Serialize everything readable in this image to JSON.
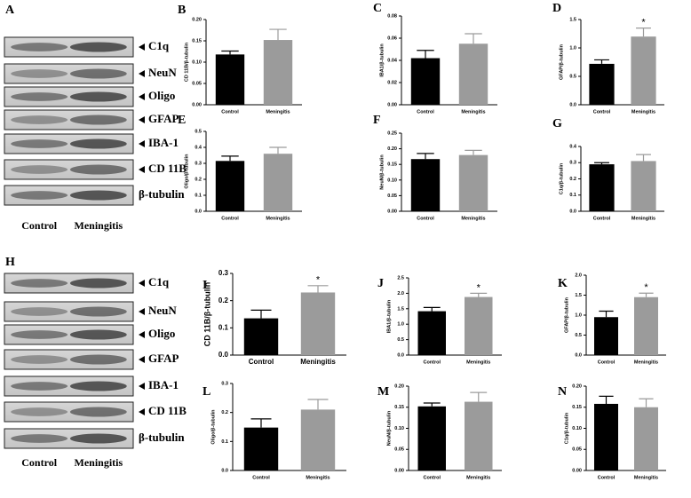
{
  "blots": [
    {
      "panel_label": "A",
      "bands": [
        "C1q",
        "NeuN",
        "Oligo",
        "GFAP",
        "IBA-1",
        "CD 11B",
        "β-tubulin"
      ],
      "lanes": [
        "Control",
        "Meningitis"
      ]
    },
    {
      "panel_label": "H",
      "bands": [
        "C1q",
        "NeuN",
        "Oligo",
        "GFAP",
        "IBA-1",
        "CD 11B",
        "β-tubulin"
      ],
      "lanes": [
        "Control",
        "Meningitis"
      ]
    }
  ],
  "chart_data": [
    {
      "type": "bar",
      "panel_label": "B",
      "ylabel": "CD 11B/β-tubulin",
      "categories": [
        "Control",
        "Meningitis"
      ],
      "values": [
        0.118,
        0.152
      ],
      "errors": [
        0.008,
        0.025
      ],
      "colors": [
        "#000000",
        "#9b9b9b"
      ],
      "significance": [
        null,
        null
      ],
      "ylim": [
        0,
        0.2
      ],
      "yticks": [
        {
          "value": 0,
          "label": "0.00"
        },
        0.05,
        {
          "value": 0.1,
          "label": "0.10"
        },
        0.15,
        {
          "value": 0.2,
          "label": "0.20"
        }
      ]
    },
    {
      "type": "bar",
      "panel_label": "C",
      "ylabel": "IBA1/β-tubulin",
      "categories": [
        "Control",
        "Meningitis"
      ],
      "values": [
        0.042,
        0.055
      ],
      "errors": [
        0.007,
        0.009
      ],
      "colors": [
        "#000000",
        "#9b9b9b"
      ],
      "significance": [
        null,
        null
      ],
      "ylim": [
        0,
        0.08
      ],
      "yticks": [
        {
          "value": 0,
          "label": "0.00"
        },
        0.02,
        0.04,
        0.06,
        0.08
      ]
    },
    {
      "type": "bar",
      "panel_label": "D",
      "ylabel": "GFAP/β-tubulin",
      "categories": [
        "Control",
        "Meningitis"
      ],
      "values": [
        0.72,
        1.2
      ],
      "errors": [
        0.07,
        0.15
      ],
      "colors": [
        "#000000",
        "#9b9b9b"
      ],
      "significance": [
        null,
        "*"
      ],
      "ylim": [
        0,
        1.5
      ],
      "yticks": [
        {
          "value": 0,
          "label": "0.0"
        },
        0.5,
        {
          "value": 1,
          "label": "1.0"
        },
        1.5
      ]
    },
    {
      "type": "bar",
      "panel_label": "E",
      "ylabel": "Oligo/β-tubulin",
      "categories": [
        "Control",
        "Meningitis"
      ],
      "values": [
        0.315,
        0.36
      ],
      "errors": [
        0.03,
        0.04
      ],
      "colors": [
        "#000000",
        "#9b9b9b"
      ],
      "significance": [
        null,
        null
      ],
      "ylim": [
        0,
        0.5
      ],
      "yticks": [
        {
          "value": 0,
          "label": "0.0"
        },
        0.1,
        0.2,
        0.3,
        0.4,
        0.5
      ]
    },
    {
      "type": "bar",
      "panel_label": "F",
      "ylabel": "NeuN/β-tubulin",
      "categories": [
        "Control",
        "Meningitis"
      ],
      "values": [
        0.167,
        0.18
      ],
      "errors": [
        0.018,
        0.015
      ],
      "colors": [
        "#000000",
        "#9b9b9b"
      ],
      "significance": [
        null,
        null
      ],
      "ylim": [
        0,
        0.25
      ],
      "yticks": [
        {
          "value": 0,
          "label": "0.00"
        },
        0.05,
        {
          "value": 0.1,
          "label": "0.10"
        },
        0.15,
        {
          "value": 0.2,
          "label": "0.20"
        },
        0.25
      ]
    },
    {
      "type": "bar",
      "panel_label": "G",
      "ylabel": "C1q/β-tubulin",
      "categories": [
        "Control",
        "Meningitis"
      ],
      "values": [
        0.29,
        0.31
      ],
      "errors": [
        0.01,
        0.04
      ],
      "colors": [
        "#000000",
        "#9b9b9b"
      ],
      "significance": [
        null,
        null
      ],
      "ylim": [
        0,
        0.4
      ],
      "yticks": [
        {
          "value": 0,
          "label": "0.0"
        },
        0.1,
        0.2,
        0.3,
        0.4
      ]
    },
    {
      "type": "bar",
      "panel_label": "I",
      "ylabel": "CD 11B/β-tubulin",
      "categories": [
        "Control",
        "Meningitis"
      ],
      "values": [
        0.135,
        0.23
      ],
      "errors": [
        0.03,
        0.025
      ],
      "colors": [
        "#000000",
        "#9b9b9b"
      ],
      "significance": [
        null,
        "*"
      ],
      "ylim": [
        0,
        0.3
      ],
      "yticks": [
        {
          "value": 0,
          "label": "0.0"
        },
        0.1,
        0.2,
        0.3
      ]
    },
    {
      "type": "bar",
      "panel_label": "J",
      "ylabel": "IBA1/β-tubulin",
      "categories": [
        "Control",
        "Meningitis"
      ],
      "values": [
        1.42,
        1.88
      ],
      "errors": [
        0.12,
        0.12
      ],
      "colors": [
        "#000000",
        "#9b9b9b"
      ],
      "significance": [
        null,
        "*"
      ],
      "ylim": [
        0,
        2.5
      ],
      "yticks": [
        {
          "value": 0,
          "label": "0.0"
        },
        0.5,
        {
          "value": 1,
          "label": "1.0"
        },
        1.5,
        {
          "value": 2,
          "label": "2.0"
        },
        2.5
      ]
    },
    {
      "type": "bar",
      "panel_label": "K",
      "ylabel": "GFAP/β-tubulin",
      "categories": [
        "Control",
        "Meningitis"
      ],
      "values": [
        0.95,
        1.45
      ],
      "errors": [
        0.15,
        0.1
      ],
      "colors": [
        "#000000",
        "#9b9b9b"
      ],
      "significance": [
        null,
        "*"
      ],
      "ylim": [
        0,
        2
      ],
      "yticks": [
        {
          "value": 0,
          "label": "0.0"
        },
        0.5,
        {
          "value": 1,
          "label": "1.0"
        },
        1.5,
        {
          "value": 2,
          "label": "2.0"
        }
      ]
    },
    {
      "type": "bar",
      "panel_label": "L",
      "ylabel": "Oligo/β-tubulin",
      "categories": [
        "Control",
        "Meningitis"
      ],
      "values": [
        0.148,
        0.21
      ],
      "errors": [
        0.03,
        0.035
      ],
      "colors": [
        "#000000",
        "#9b9b9b"
      ],
      "significance": [
        null,
        null
      ],
      "ylim": [
        0,
        0.3
      ],
      "yticks": [
        {
          "value": 0,
          "label": "0.0"
        },
        0.1,
        0.2,
        0.3
      ]
    },
    {
      "type": "bar",
      "panel_label": "M",
      "ylabel": "NeuN/β-tubulin",
      "categories": [
        "Control",
        "Meningitis"
      ],
      "values": [
        0.152,
        0.163
      ],
      "errors": [
        0.008,
        0.022
      ],
      "colors": [
        "#000000",
        "#9b9b9b"
      ],
      "significance": [
        null,
        null
      ],
      "ylim": [
        0,
        0.2
      ],
      "yticks": [
        {
          "value": 0,
          "label": "0.00"
        },
        0.05,
        {
          "value": 0.1,
          "label": "0.10"
        },
        0.15,
        {
          "value": 0.2,
          "label": "0.20"
        }
      ]
    },
    {
      "type": "bar",
      "panel_label": "N",
      "ylabel": "C1q/β-tubulin",
      "categories": [
        "Control",
        "Meningitis"
      ],
      "values": [
        0.158,
        0.15
      ],
      "errors": [
        0.018,
        0.02
      ],
      "colors": [
        "#000000",
        "#9b9b9b"
      ],
      "significance": [
        null,
        null
      ],
      "ylim": [
        0,
        0.2
      ],
      "yticks": [
        {
          "value": 0,
          "label": "0.00"
        },
        0.05,
        {
          "value": 0.1,
          "label": "0.10"
        },
        0.15,
        {
          "value": 0.2,
          "label": "0.20"
        }
      ]
    }
  ]
}
